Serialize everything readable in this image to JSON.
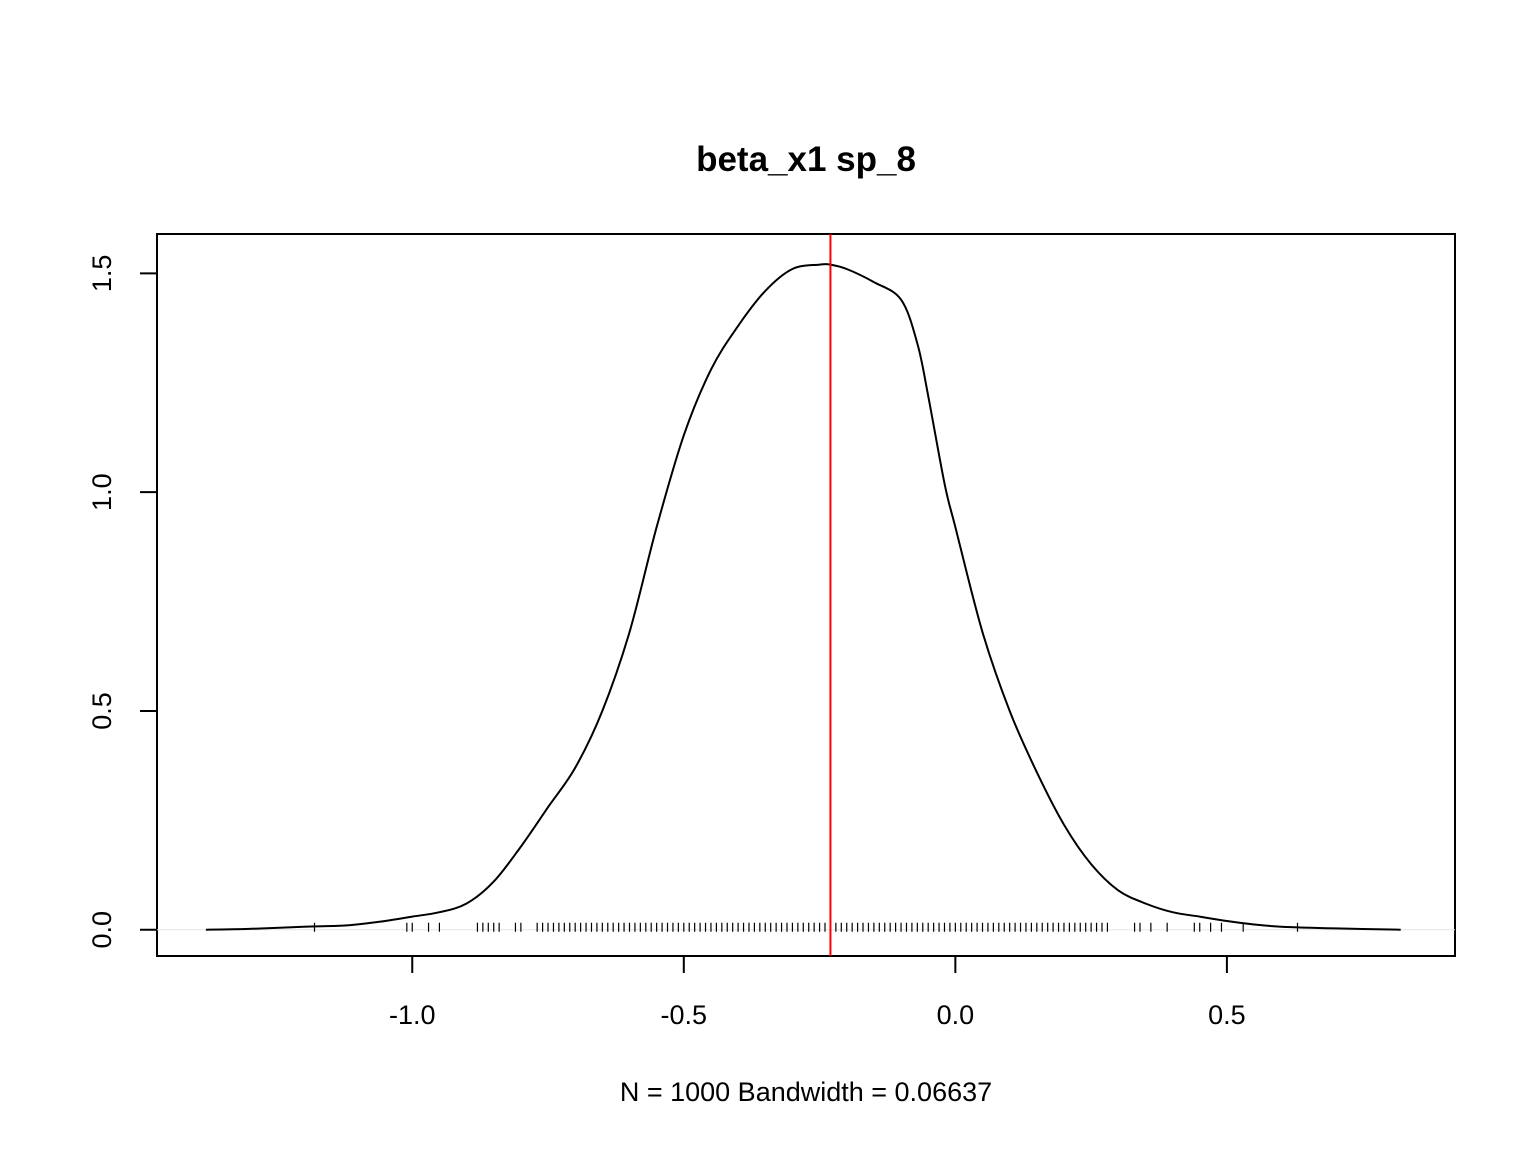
{
  "chart_data": {
    "type": "line",
    "title": "beta_x1 sp_8",
    "xlabel": "N = 1000   Bandwidth = 0.06637",
    "ylabel": "",
    "xlim": [
      -1.47,
      0.92
    ],
    "ylim": [
      -0.06,
      1.59
    ],
    "x_ticks": [
      -1.0,
      -0.5,
      0.0,
      0.5
    ],
    "x_tick_labels": [
      "-1.0",
      "-0.5",
      "0.0",
      "0.5"
    ],
    "y_ticks": [
      0.0,
      0.5,
      1.0,
      1.5
    ],
    "y_tick_labels": [
      "0.0",
      "0.5",
      "1.0",
      "1.5"
    ],
    "grid": false,
    "series": [
      {
        "color": "#000000",
        "x": [
          -1.38,
          -1.3,
          -1.2,
          -1.12,
          -1.05,
          -1.0,
          -0.95,
          -0.9,
          -0.85,
          -0.8,
          -0.75,
          -0.7,
          -0.65,
          -0.6,
          -0.55,
          -0.5,
          -0.45,
          -0.4,
          -0.35,
          -0.3,
          -0.25,
          -0.23,
          -0.2,
          -0.15,
          -0.1,
          -0.07,
          -0.05,
          -0.02,
          0.0,
          0.05,
          0.1,
          0.15,
          0.2,
          0.25,
          0.3,
          0.35,
          0.4,
          0.45,
          0.5,
          0.55,
          0.6,
          0.7,
          0.82
        ],
        "values": [
          0.0,
          0.002,
          0.007,
          0.01,
          0.02,
          0.03,
          0.04,
          0.06,
          0.11,
          0.19,
          0.28,
          0.37,
          0.5,
          0.68,
          0.92,
          1.13,
          1.28,
          1.38,
          1.46,
          1.51,
          1.52,
          1.52,
          1.51,
          1.48,
          1.44,
          1.34,
          1.22,
          1.02,
          0.92,
          0.68,
          0.5,
          0.36,
          0.24,
          0.15,
          0.09,
          0.06,
          0.04,
          0.03,
          0.02,
          0.012,
          0.007,
          0.003,
          0.0
        ]
      }
    ],
    "vline": {
      "x": -0.23,
      "color": "#ff0000"
    },
    "rug": [
      -1.18,
      -1.01,
      -1.0,
      -0.97,
      -0.95,
      -0.88,
      -0.87,
      -0.86,
      -0.85,
      -0.84,
      -0.81,
      -0.8,
      -0.77,
      -0.76,
      -0.75,
      -0.74,
      -0.73,
      -0.72,
      -0.71,
      -0.7,
      -0.69,
      -0.68,
      -0.67,
      -0.66,
      -0.65,
      -0.64,
      -0.63,
      -0.62,
      -0.61,
      -0.6,
      -0.59,
      -0.58,
      -0.57,
      -0.56,
      -0.55,
      -0.54,
      -0.53,
      -0.52,
      -0.51,
      -0.5,
      -0.49,
      -0.48,
      -0.47,
      -0.46,
      -0.45,
      -0.44,
      -0.43,
      -0.42,
      -0.41,
      -0.4,
      -0.39,
      -0.38,
      -0.37,
      -0.36,
      -0.35,
      -0.34,
      -0.33,
      -0.32,
      -0.31,
      -0.3,
      -0.29,
      -0.28,
      -0.27,
      -0.26,
      -0.25,
      -0.24,
      -0.23,
      -0.22,
      -0.21,
      -0.2,
      -0.19,
      -0.18,
      -0.17,
      -0.16,
      -0.15,
      -0.14,
      -0.13,
      -0.12,
      -0.11,
      -0.1,
      -0.09,
      -0.08,
      -0.07,
      -0.06,
      -0.05,
      -0.04,
      -0.03,
      -0.02,
      -0.01,
      0.0,
      0.01,
      0.02,
      0.03,
      0.04,
      0.05,
      0.06,
      0.07,
      0.08,
      0.09,
      0.1,
      0.11,
      0.12,
      0.13,
      0.14,
      0.15,
      0.16,
      0.17,
      0.18,
      0.19,
      0.2,
      0.21,
      0.22,
      0.23,
      0.24,
      0.25,
      0.26,
      0.27,
      0.28,
      0.33,
      0.34,
      0.36,
      0.39,
      0.44,
      0.45,
      0.47,
      0.49,
      0.53,
      0.63
    ]
  }
}
